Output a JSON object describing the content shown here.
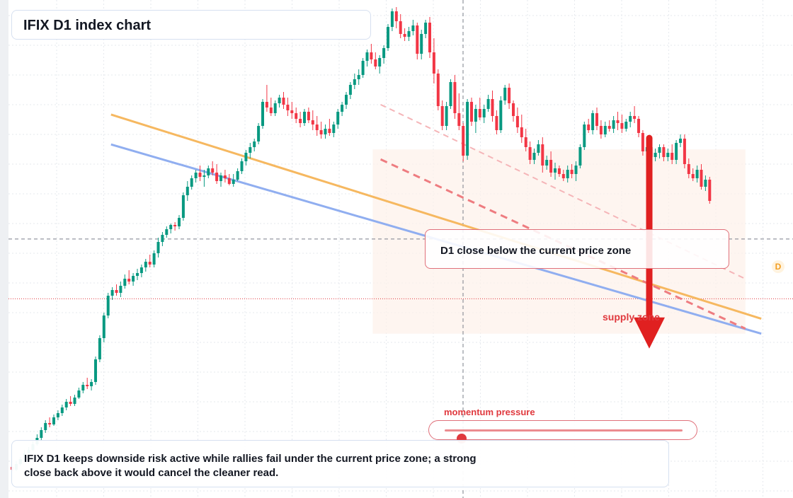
{
  "title": "IFIX D1 index chart",
  "callout": "D1 close below the current price zone",
  "zone_label": "supply zone",
  "badge": "D",
  "momentum": {
    "label": "momentum pressure",
    "level": 0.07
  },
  "note": "IFIX D1 keeps downside risk active while rallies fail under the current price zone; a strong close back above it would cancel the cleaner read.",
  "colors": {
    "up": "#089981",
    "down": "#f23645",
    "trend_orange": "#f6b860",
    "trend_blue": "#90aef0",
    "arrow": "#e02020"
  },
  "chart_data": {
    "type": "candlestick",
    "timeframe": "D1",
    "candles": [
      [
        44,
        44,
        38,
        40
      ],
      [
        40,
        52,
        38,
        48
      ],
      [
        48,
        58,
        46,
        55
      ],
      [
        55,
        68,
        52,
        63
      ],
      [
        63,
        72,
        58,
        68
      ],
      [
        68,
        80,
        66,
        76
      ],
      [
        76,
        90,
        74,
        85
      ],
      [
        85,
        100,
        82,
        96
      ],
      [
        96,
        110,
        92,
        106
      ],
      [
        106,
        114,
        100,
        104
      ],
      [
        104,
        118,
        102,
        114
      ],
      [
        114,
        124,
        110,
        120
      ],
      [
        120,
        132,
        116,
        128
      ],
      [
        128,
        140,
        124,
        136
      ],
      [
        136,
        144,
        130,
        133
      ],
      [
        133,
        146,
        130,
        142
      ],
      [
        142,
        156,
        140,
        152
      ],
      [
        152,
        164,
        148,
        160
      ],
      [
        160,
        170,
        154,
        158
      ],
      [
        158,
        168,
        152,
        164
      ],
      [
        164,
        200,
        160,
        196
      ],
      [
        196,
        230,
        192,
        226
      ],
      [
        226,
        262,
        220,
        258
      ],
      [
        258,
        290,
        254,
        286
      ],
      [
        286,
        298,
        280,
        294
      ],
      [
        294,
        302,
        286,
        290
      ],
      [
        290,
        306,
        284,
        300
      ],
      [
        300,
        316,
        296,
        310
      ],
      [
        310,
        322,
        302,
        306
      ],
      [
        306,
        318,
        300,
        314
      ],
      [
        314,
        324,
        308,
        318
      ],
      [
        318,
        330,
        312,
        326
      ],
      [
        326,
        338,
        320,
        334
      ],
      [
        334,
        344,
        326,
        330
      ],
      [
        330,
        350,
        326,
        346
      ],
      [
        346,
        368,
        340,
        362
      ],
      [
        362,
        376,
        356,
        372
      ],
      [
        372,
        384,
        368,
        380
      ],
      [
        380,
        388,
        374,
        386
      ],
      [
        386,
        390,
        378,
        384
      ],
      [
        384,
        400,
        380,
        396
      ],
      [
        396,
        432,
        392,
        428
      ],
      [
        428,
        448,
        420,
        440
      ],
      [
        440,
        456,
        436,
        452
      ],
      [
        452,
        464,
        446,
        460
      ],
      [
        460,
        470,
        448,
        454
      ],
      [
        454,
        464,
        440,
        456
      ],
      [
        456,
        470,
        452,
        466
      ],
      [
        466,
        476,
        456,
        460
      ],
      [
        460,
        472,
        444,
        448
      ],
      [
        448,
        460,
        440,
        456
      ],
      [
        456,
        464,
        446,
        452
      ],
      [
        452,
        458,
        442,
        444
      ],
      [
        444,
        458,
        440,
        450
      ],
      [
        450,
        466,
        448,
        462
      ],
      [
        462,
        480,
        458,
        476
      ],
      [
        476,
        492,
        470,
        488
      ],
      [
        488,
        502,
        480,
        496
      ],
      [
        496,
        508,
        490,
        504
      ],
      [
        504,
        530,
        500,
        526
      ],
      [
        526,
        564,
        522,
        560
      ],
      [
        560,
        584,
        546,
        552
      ],
      [
        552,
        566,
        540,
        544
      ],
      [
        544,
        562,
        540,
        558
      ],
      [
        558,
        570,
        552,
        566
      ],
      [
        566,
        574,
        550,
        556
      ],
      [
        556,
        566,
        540,
        548
      ],
      [
        548,
        560,
        536,
        544
      ],
      [
        544,
        552,
        530,
        536
      ],
      [
        536,
        546,
        524,
        530
      ],
      [
        530,
        550,
        526,
        546
      ],
      [
        546,
        552,
        530,
        534
      ],
      [
        534,
        548,
        520,
        528
      ],
      [
        528,
        540,
        512,
        520
      ],
      [
        520,
        532,
        508,
        514
      ],
      [
        514,
        528,
        508,
        522
      ],
      [
        522,
        536,
        512,
        516
      ],
      [
        516,
        532,
        510,
        528
      ],
      [
        528,
        550,
        522,
        546
      ],
      [
        546,
        560,
        540,
        556
      ],
      [
        556,
        574,
        550,
        570
      ],
      [
        570,
        588,
        564,
        584
      ],
      [
        584,
        600,
        578,
        592
      ],
      [
        592,
        606,
        584,
        598
      ],
      [
        598,
        622,
        594,
        618
      ],
      [
        618,
        634,
        610,
        630
      ],
      [
        630,
        642,
        614,
        620
      ],
      [
        620,
        630,
        606,
        610
      ],
      [
        610,
        626,
        600,
        622
      ],
      [
        622,
        640,
        614,
        636
      ],
      [
        636,
        670,
        632,
        666
      ],
      [
        666,
        692,
        660,
        688
      ],
      [
        688,
        694,
        664,
        674
      ],
      [
        674,
        684,
        650,
        656
      ],
      [
        656,
        664,
        646,
        652
      ],
      [
        652,
        666,
        646,
        660
      ],
      [
        660,
        676,
        654,
        668
      ],
      [
        668,
        672,
        620,
        628
      ],
      [
        628,
        662,
        620,
        656
      ],
      [
        656,
        676,
        650,
        672
      ],
      [
        672,
        680,
        622,
        630
      ],
      [
        630,
        650,
        586,
        600
      ],
      [
        600,
        606,
        548,
        554
      ],
      [
        554,
        562,
        520,
        526
      ],
      [
        526,
        560,
        520,
        554
      ],
      [
        554,
        592,
        550,
        588
      ],
      [
        588,
        598,
        536,
        544
      ],
      [
        544,
        572,
        520,
        526
      ],
      [
        526,
        530,
        476,
        484
      ],
      [
        484,
        564,
        478,
        560
      ],
      [
        560,
        566,
        526,
        532
      ],
      [
        532,
        556,
        516,
        550
      ],
      [
        550,
        566,
        534,
        538
      ],
      [
        538,
        556,
        530,
        550
      ],
      [
        550,
        570,
        546,
        564
      ],
      [
        564,
        576,
        532,
        540
      ],
      [
        540,
        548,
        514,
        520
      ],
      [
        520,
        568,
        516,
        562
      ],
      [
        562,
        584,
        556,
        580
      ],
      [
        580,
        586,
        550,
        558
      ],
      [
        558,
        562,
        532,
        540
      ],
      [
        540,
        552,
        516,
        524
      ],
      [
        524,
        542,
        502,
        510
      ],
      [
        510,
        522,
        490,
        496
      ],
      [
        496,
        504,
        472,
        478
      ],
      [
        478,
        494,
        472,
        488
      ],
      [
        488,
        506,
        484,
        500
      ],
      [
        500,
        510,
        460,
        470
      ],
      [
        470,
        484,
        464,
        478
      ],
      [
        478,
        490,
        454,
        460
      ],
      [
        460,
        474,
        450,
        466
      ],
      [
        466,
        470,
        454,
        458
      ],
      [
        458,
        464,
        448,
        452
      ],
      [
        452,
        470,
        446,
        464
      ],
      [
        464,
        472,
        452,
        458
      ],
      [
        458,
        476,
        448,
        470
      ],
      [
        470,
        500,
        466,
        496
      ],
      [
        496,
        532,
        492,
        528
      ],
      [
        528,
        536,
        516,
        520
      ],
      [
        520,
        548,
        514,
        544
      ],
      [
        544,
        552,
        520,
        526
      ],
      [
        526,
        534,
        508,
        514
      ],
      [
        514,
        532,
        510,
        526
      ],
      [
        526,
        534,
        518,
        522
      ],
      [
        522,
        540,
        516,
        534
      ],
      [
        534,
        546,
        520,
        530
      ],
      [
        530,
        542,
        516,
        522
      ],
      [
        522,
        536,
        518,
        532
      ],
      [
        532,
        546,
        524,
        540
      ],
      [
        540,
        554,
        530,
        536
      ],
      [
        536,
        540,
        510,
        516
      ],
      [
        516,
        520,
        484,
        490
      ],
      [
        490,
        500,
        480,
        496
      ],
      [
        496,
        504,
        476,
        482
      ],
      [
        482,
        494,
        476,
        488
      ],
      [
        488,
        500,
        480,
        496
      ],
      [
        496,
        500,
        476,
        482
      ],
      [
        482,
        494,
        476,
        488
      ],
      [
        488,
        500,
        472,
        478
      ],
      [
        478,
        506,
        472,
        502
      ],
      [
        502,
        514,
        496,
        508
      ],
      [
        508,
        514,
        466,
        472
      ],
      [
        472,
        480,
        452,
        458
      ],
      [
        458,
        466,
        448,
        452
      ],
      [
        452,
        470,
        446,
        464
      ],
      [
        464,
        472,
        436,
        440
      ],
      [
        440,
        456,
        434,
        450
      ],
      [
        450,
        454,
        416,
        420
      ]
    ],
    "trendlines": [
      {
        "color": "orange",
        "from": [
          0.14,
          0.77
        ],
        "to": [
          0.96,
          0.36
        ]
      },
      {
        "color": "blue",
        "from": [
          0.14,
          0.71
        ],
        "to": [
          0.96,
          0.33
        ]
      },
      {
        "color": "red-dashed",
        "from": [
          0.48,
          0.68
        ],
        "to": [
          0.94,
          0.34
        ]
      },
      {
        "color": "pink-dashed",
        "from": [
          0.48,
          0.79
        ],
        "to": [
          0.94,
          0.44
        ]
      }
    ],
    "reference_lines": {
      "current_price_level": 0.52,
      "low_level": 0.4
    },
    "arrow": {
      "direction": "down",
      "from_level": 0.72,
      "to_level": 0.3
    },
    "supply_zone": {
      "from": 0.47,
      "to": 0.94,
      "top": 0.7,
      "bottom": 0.33
    },
    "grid": true,
    "ylim": [
      0,
      704
    ]
  }
}
